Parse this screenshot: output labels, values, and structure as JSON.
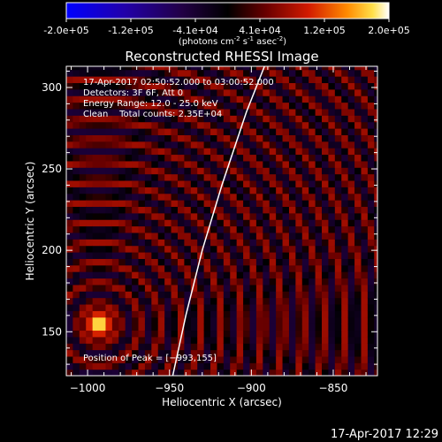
{
  "colorbar": {
    "min": -200000,
    "max": 200000,
    "tick_labels": [
      "-2.0e+05",
      "-1.2e+05",
      "-4.1e+04",
      "4.1e+04",
      "1.2e+05",
      "2.0e+05"
    ],
    "unit_text": "(photons cm",
    "unit_sup1": "-2",
    "unit_mid": " s",
    "unit_sup2": "-1",
    "unit_mid2": " asec",
    "unit_sup3": "-2",
    "unit_end": ")"
  },
  "chart_data": {
    "type": "heatmap",
    "title": "Reconstructed RHESSI Image",
    "xlabel": "Heliocentric X (arcsec)",
    "ylabel": "Heliocentric Y (arcsec)",
    "xlim": [
      -1013,
      -823
    ],
    "ylim": [
      123,
      313
    ],
    "x_ticks": [
      -1000,
      -950,
      -900,
      -850
    ],
    "x_tick_labels": [
      "−1000",
      "−950",
      "−900",
      "−850"
    ],
    "y_ticks": [
      150,
      200,
      250,
      300
    ],
    "y_tick_labels": [
      "150",
      "200",
      "250",
      "300"
    ],
    "source_peak": {
      "x": -993,
      "y": 155
    },
    "ring_spacing_arcsec": 12.5,
    "pixel_size_arcsec": 4,
    "limb_curve": [
      [
        -948,
        123
      ],
      [
        -940,
        160
      ],
      [
        -930,
        200
      ],
      [
        -918,
        240
      ],
      [
        -903,
        285
      ],
      [
        -892,
        313
      ]
    ],
    "info_lines": [
      "17-Apr-2017 02:50:52.000 to 03:00:52.000",
      "Detectors: 3F 6F, Att 0",
      "Energy Range: 12.0 - 25.0 keV",
      "Clean    Total counts: 2.35E+04"
    ],
    "peak_label": "Position of Peak = [−993,155]"
  },
  "footer": {
    "timestamp": "17-Apr-2017 12:29"
  },
  "colors": {
    "background": "#000000",
    "text": "#ffffff"
  }
}
